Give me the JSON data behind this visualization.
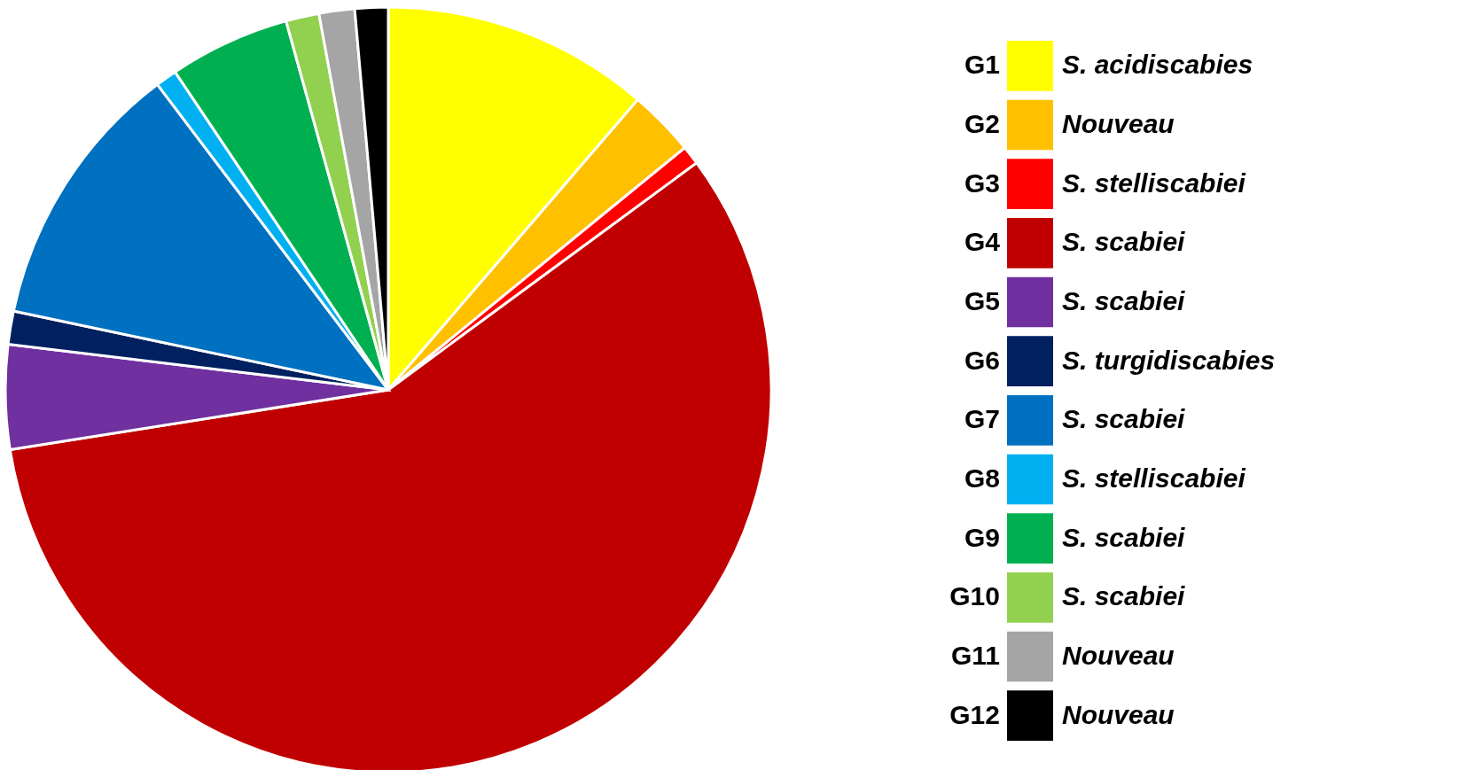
{
  "chart_data": {
    "type": "pie",
    "legend": "right",
    "categories": [
      "G1",
      "G2",
      "G3",
      "G4",
      "G5",
      "G6",
      "G7",
      "G8",
      "G9",
      "G10",
      "G11",
      "G12"
    ],
    "values": [
      11.3,
      2.8,
      0.8,
      57.6,
      4.4,
      1.4,
      11.4,
      0.9,
      5.1,
      1.4,
      1.5,
      1.4
    ],
    "colors": [
      "#ffff00",
      "#ffc000",
      "#ff0000",
      "#c00000",
      "#7030a0",
      "#002060",
      "#0070c0",
      "#00b0f0",
      "#00b050",
      "#92d050",
      "#a5a5a5",
      "#000000"
    ],
    "annotations": [
      {
        "text": "S. acidiscabies",
        "x": "G1"
      },
      {
        "text": "Nouveau",
        "x": "G2"
      },
      {
        "text": "S. stelliscabiei",
        "x": "G3"
      },
      {
        "text": "S. scabiei",
        "x": "G4"
      },
      {
        "text": "S. scabiei",
        "x": "G5"
      },
      {
        "text": "S. turgidiscabies",
        "x": "G6"
      },
      {
        "text": "S. scabiei",
        "x": "G7"
      },
      {
        "text": "S. stelliscabiei",
        "x": "G8"
      },
      {
        "text": "S. scabiei",
        "x": "G9"
      },
      {
        "text": "S. scabiei",
        "x": "G10"
      },
      {
        "text": "Nouveau",
        "x": "G11"
      },
      {
        "text": "Nouveau",
        "x": "G12"
      }
    ]
  }
}
